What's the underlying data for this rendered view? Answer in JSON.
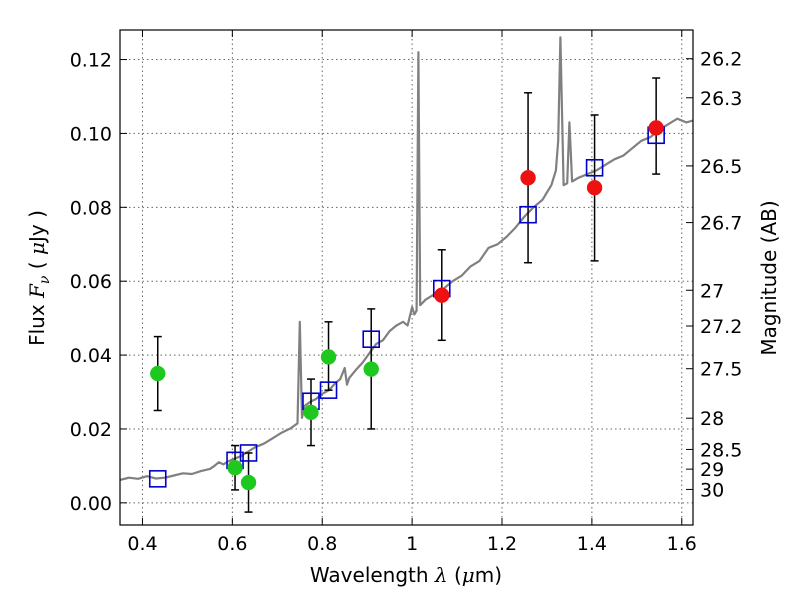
{
  "chart_data": {
    "type": "scatter",
    "title": "",
    "xlabel_parts": [
      "Wavelength  ",
      "λ",
      " (",
      "μ",
      "m)"
    ],
    "ylabel_parts": [
      "Flux  ",
      "F",
      "ν",
      "  ( ",
      "μ",
      "Jy )"
    ],
    "y2label": "Magnitude (AB)",
    "xlim": [
      0.35,
      1.625
    ],
    "ylim": [
      -0.006,
      0.128
    ],
    "grid": true,
    "x_ticks": [
      0.4,
      0.6,
      0.8,
      1.0,
      1.2,
      1.4,
      1.6
    ],
    "x_tick_labels": [
      "0.4",
      "0.6",
      "0.8",
      "1",
      "1.2",
      "1.4",
      "1.6"
    ],
    "y_ticks": [
      0.0,
      0.02,
      0.04,
      0.06,
      0.08,
      0.1,
      0.12
    ],
    "y_tick_labels": [
      "0.00",
      "0.02",
      "0.04",
      "0.06",
      "0.08",
      "0.10",
      "0.12"
    ],
    "y2_ticks": [
      26.2,
      26.3,
      26.5,
      26.7,
      27,
      27.2,
      27.5,
      28,
      28.5,
      29,
      30
    ],
    "y2_tick_labels": [
      "26.2",
      "26.3",
      "26.5",
      "26.7",
      "27",
      "27.2",
      "27.5",
      "28",
      "28.5",
      "29",
      "30"
    ],
    "colors": {
      "model_line": "#808080",
      "observed_optical": "#1ec81e",
      "observed_nir": "#ee1111",
      "synthetic": "#0000cc",
      "errorbar": "#000000",
      "grid": "#666666"
    },
    "series": [
      {
        "type": "line",
        "points": [
          [
            0.35,
            0.0062
          ],
          [
            0.37,
            0.0068
          ],
          [
            0.39,
            0.0065
          ],
          [
            0.41,
            0.0072
          ],
          [
            0.43,
            0.0066
          ],
          [
            0.45,
            0.0068
          ],
          [
            0.47,
            0.0074
          ],
          [
            0.49,
            0.008
          ],
          [
            0.51,
            0.0078
          ],
          [
            0.53,
            0.0086
          ],
          [
            0.55,
            0.0092
          ],
          [
            0.56,
            0.01
          ],
          [
            0.57,
            0.011
          ],
          [
            0.58,
            0.0104
          ],
          [
            0.59,
            0.0112
          ],
          [
            0.6,
            0.0117
          ],
          [
            0.61,
            0.0122
          ],
          [
            0.62,
            0.0127
          ],
          [
            0.63,
            0.0135
          ],
          [
            0.65,
            0.015
          ],
          [
            0.67,
            0.016
          ],
          [
            0.69,
            0.0175
          ],
          [
            0.71,
            0.019
          ],
          [
            0.73,
            0.0202
          ],
          [
            0.745,
            0.0215
          ],
          [
            0.75,
            0.049
          ],
          [
            0.755,
            0.023
          ],
          [
            0.76,
            0.0262
          ],
          [
            0.775,
            0.0275
          ],
          [
            0.785,
            0.028
          ],
          [
            0.8,
            0.0295
          ],
          [
            0.815,
            0.0305
          ],
          [
            0.83,
            0.0325
          ],
          [
            0.84,
            0.0335
          ],
          [
            0.85,
            0.0365
          ],
          [
            0.855,
            0.032
          ],
          [
            0.86,
            0.0338
          ],
          [
            0.875,
            0.036
          ],
          [
            0.89,
            0.038
          ],
          [
            0.905,
            0.0405
          ],
          [
            0.92,
            0.043
          ],
          [
            0.935,
            0.044
          ],
          [
            0.95,
            0.0465
          ],
          [
            0.965,
            0.048
          ],
          [
            0.98,
            0.049
          ],
          [
            0.99,
            0.048
          ],
          [
            1.0,
            0.053
          ],
          [
            1.005,
            0.051
          ],
          [
            1.01,
            0.052
          ],
          [
            1.014,
            0.122
          ],
          [
            1.018,
            0.0535
          ],
          [
            1.03,
            0.055
          ],
          [
            1.05,
            0.0565
          ],
          [
            1.07,
            0.058
          ],
          [
            1.09,
            0.06
          ],
          [
            1.11,
            0.0615
          ],
          [
            1.13,
            0.064
          ],
          [
            1.15,
            0.0655
          ],
          [
            1.17,
            0.069
          ],
          [
            1.19,
            0.07
          ],
          [
            1.21,
            0.072
          ],
          [
            1.23,
            0.0745
          ],
          [
            1.25,
            0.0775
          ],
          [
            1.27,
            0.08
          ],
          [
            1.29,
            0.082
          ],
          [
            1.3,
            0.084
          ],
          [
            1.31,
            0.086
          ],
          [
            1.32,
            0.09
          ],
          [
            1.325,
            0.098
          ],
          [
            1.33,
            0.126
          ],
          [
            1.337,
            0.086
          ],
          [
            1.345,
            0.0865
          ],
          [
            1.35,
            0.103
          ],
          [
            1.356,
            0.087
          ],
          [
            1.37,
            0.088
          ],
          [
            1.39,
            0.089
          ],
          [
            1.41,
            0.09
          ],
          [
            1.43,
            0.0915
          ],
          [
            1.45,
            0.093
          ],
          [
            1.47,
            0.094
          ],
          [
            1.49,
            0.096
          ],
          [
            1.51,
            0.098
          ],
          [
            1.53,
            0.099
          ],
          [
            1.55,
            0.101
          ],
          [
            1.57,
            0.1025
          ],
          [
            1.59,
            0.104
          ],
          [
            1.61,
            0.103
          ],
          [
            1.625,
            0.1035
          ]
        ]
      },
      {
        "type": "scatter",
        "marker": "circle",
        "points": [
          {
            "x": 0.434,
            "y": 0.035,
            "lo": 0.025,
            "hi": 0.045
          },
          {
            "x": 0.606,
            "y": 0.0095,
            "lo": 0.0035,
            "hi": 0.0155
          },
          {
            "x": 0.636,
            "y": 0.0055,
            "lo": -0.0025,
            "hi": 0.0135
          },
          {
            "x": 0.775,
            "y": 0.0245,
            "lo": 0.0155,
            "hi": 0.0335
          },
          {
            "x": 0.814,
            "y": 0.0395,
            "lo": 0.0305,
            "hi": 0.049
          },
          {
            "x": 0.909,
            "y": 0.0362,
            "lo": 0.02,
            "hi": 0.0525
          }
        ]
      },
      {
        "type": "scatter",
        "marker": "circle",
        "points": [
          {
            "x": 1.066,
            "y": 0.0562,
            "lo": 0.044,
            "hi": 0.0685
          },
          {
            "x": 1.258,
            "y": 0.088,
            "lo": 0.065,
            "hi": 0.111
          },
          {
            "x": 1.406,
            "y": 0.0853,
            "lo": 0.0655,
            "hi": 0.105
          },
          {
            "x": 1.543,
            "y": 0.1015,
            "lo": 0.089,
            "hi": 0.115
          }
        ]
      },
      {
        "type": "scatter",
        "marker": "square-open",
        "points": [
          {
            "x": 0.434,
            "y": 0.0065
          },
          {
            "x": 0.606,
            "y": 0.0115
          },
          {
            "x": 0.636,
            "y": 0.0135
          },
          {
            "x": 0.775,
            "y": 0.0275
          },
          {
            "x": 0.814,
            "y": 0.0305
          },
          {
            "x": 0.909,
            "y": 0.0443
          },
          {
            "x": 1.066,
            "y": 0.058
          },
          {
            "x": 1.258,
            "y": 0.078
          },
          {
            "x": 1.406,
            "y": 0.0907
          },
          {
            "x": 1.543,
            "y": 0.0995
          }
        ]
      }
    ]
  }
}
